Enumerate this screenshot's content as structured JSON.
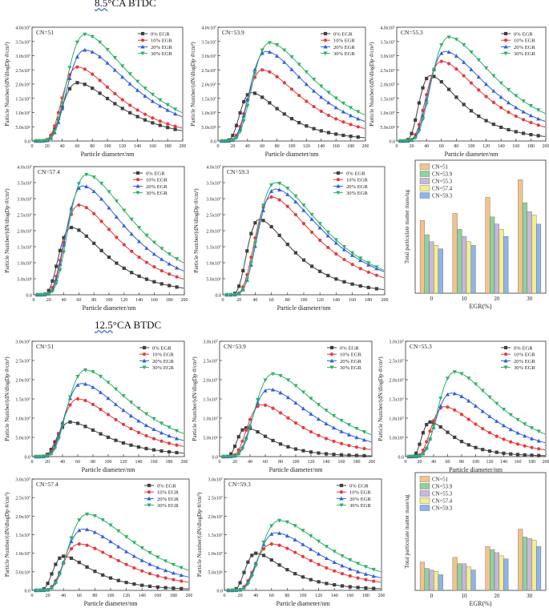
{
  "sections": [
    {
      "title_prefix": "8.5",
      "title_suffix": "°CA BTDC"
    },
    {
      "title_prefix": "12.5",
      "title_suffix": "°CA BTDC"
    }
  ],
  "legend_egr": [
    "0% EGR",
    "10% EGR",
    "20% EGR",
    "30% EGR"
  ],
  "series_colors": [
    "#404040",
    "#e8393b",
    "#2f5fe0",
    "#2fb066"
  ],
  "bar_colors": [
    "#f2c38c",
    "#8fd19e",
    "#c9b6dc",
    "#f4ee8c",
    "#8fb4ec"
  ],
  "chart_data": [
    {
      "type": "line",
      "id": "a1",
      "title": "CN=51",
      "xlabel": "Particle diameter/nm",
      "ylabel": "Particle Number/(dN/dlogDp·#/cm³)",
      "xlim": [
        0,
        200
      ],
      "ylim": [
        0,
        40000000.0
      ],
      "ytick_labels": [
        "0.0",
        "5.0x10⁶",
        "1.0x10⁷",
        "1.5x10⁷",
        "2.0x10⁷",
        "2.5x10⁷",
        "3.0x10⁷",
        "3.5x10⁷",
        "4.0x10⁷"
      ],
      "xticks": [
        0,
        20,
        40,
        60,
        80,
        100,
        120,
        140,
        160,
        180,
        200
      ],
      "series": [
        {
          "name": "0% EGR",
          "peak_x": 60,
          "peak": 20500000.0
        },
        {
          "name": "10% EGR",
          "peak_x": 60,
          "peak": 26000000.0
        },
        {
          "name": "20% EGR",
          "peak_x": 70,
          "peak": 32000000.0
        },
        {
          "name": "30% EGR",
          "peak_x": 70,
          "peak": 37500000.0
        }
      ]
    },
    {
      "type": "line",
      "id": "a2",
      "title": "CN=53.9",
      "xlabel": "Particle diameter/nm",
      "ylabel": "Particle Number/(dN/dlogDp·#/cm³)",
      "xlim": [
        0,
        200
      ],
      "ylim": [
        0,
        40000000.0
      ],
      "ytick_labels": [
        "0.0",
        "5.0x10⁶",
        "1.0x10⁷",
        "1.5x10⁷",
        "2.0x10⁷",
        "2.5x10⁷",
        "3.0x10⁷",
        "3.5x10⁷",
        "4.0x10⁷"
      ],
      "xticks": [
        0,
        20,
        40,
        60,
        80,
        100,
        120,
        140,
        160,
        180,
        200
      ],
      "series": [
        {
          "name": "0% EGR",
          "peak_x": 45,
          "peak": 17000000.0
        },
        {
          "name": "10% EGR",
          "peak_x": 60,
          "peak": 25000000.0
        },
        {
          "name": "20% EGR",
          "peak_x": 65,
          "peak": 31500000.0
        },
        {
          "name": "30% EGR",
          "peak_x": 70,
          "peak": 34500000.0
        }
      ]
    },
    {
      "type": "line",
      "id": "a3",
      "title": "CN=55.3",
      "xlabel": "Particle diameter/nm",
      "ylabel": "Particle Number/(dN/dlogDp·#/cm³)",
      "xlim": [
        0,
        200
      ],
      "ylim": [
        0,
        40000000.0
      ],
      "ytick_labels": [
        "0.0",
        "5.0x10⁶",
        "1.0x10⁷",
        "1.5x10⁷",
        "2.0x10⁷",
        "2.5x10⁷",
        "3.0x10⁷",
        "3.5x10⁷",
        "4.0x10⁷"
      ],
      "xticks": [
        0,
        20,
        40,
        60,
        80,
        100,
        120,
        140,
        160,
        180,
        200
      ],
      "series": [
        {
          "name": "0% EGR",
          "peak_x": 45,
          "peak": 23000000.0
        },
        {
          "name": "10% EGR",
          "peak_x": 60,
          "peak": 28000000.0
        },
        {
          "name": "20% EGR",
          "peak_x": 65,
          "peak": 31500000.0
        },
        {
          "name": "30% EGR",
          "peak_x": 70,
          "peak": 36500000.0
        }
      ]
    },
    {
      "type": "line",
      "id": "a4",
      "title": "CN=57.4",
      "xlabel": "Particle diameter/nm",
      "ylabel": "Particle Number/(dN/dlogDp·#/cm³)",
      "xlim": [
        0,
        200
      ],
      "ylim": [
        0,
        40000000.0
      ],
      "ytick_labels": [
        "0.0",
        "5.0x10⁶",
        "1.0x10⁷",
        "1.5x10⁷",
        "2.0x10⁷",
        "2.5x10⁷",
        "3.0x10⁷",
        "3.5x10⁷",
        "4.0x10⁷"
      ],
      "xticks": [
        0,
        20,
        40,
        60,
        80,
        100,
        120,
        140,
        160,
        180,
        200
      ],
      "series": [
        {
          "name": "0% EGR",
          "peak_x": 50,
          "peak": 21000000.0
        },
        {
          "name": "10% EGR",
          "peak_x": 60,
          "peak": 28000000.0
        },
        {
          "name": "20% EGR",
          "peak_x": 65,
          "peak": 34000000.0
        },
        {
          "name": "30% EGR",
          "peak_x": 70,
          "peak": 37500000.0
        }
      ]
    },
    {
      "type": "line",
      "id": "a5",
      "title": "CN=59.3",
      "xlabel": "Particle diameter/nm",
      "ylabel": "Particle Number/(dN/dlogDp·#/cm³)",
      "xlim": [
        0,
        200
      ],
      "ylim": [
        0,
        40000000.0
      ],
      "ytick_labels": [
        "0.0",
        "5.0x10⁶",
        "1.0x10⁷",
        "1.5x10⁷",
        "2.0x10⁷",
        "2.5x10⁷",
        "3.0x10⁷",
        "3.5x10⁷",
        "4.0x10⁷"
      ],
      "xticks": [
        0,
        20,
        40,
        60,
        80,
        100,
        120,
        140,
        160,
        180,
        200
      ],
      "series": [
        {
          "name": "0% EGR",
          "peak_x": 45,
          "peak": 23500000.0
        },
        {
          "name": "10% EGR",
          "peak_x": 60,
          "peak": 30500000.0
        },
        {
          "name": "20% EGR",
          "peak_x": 65,
          "peak": 33000000.0
        },
        {
          "name": "30% EGR",
          "peak_x": 65,
          "peak": 35000000.0
        }
      ]
    },
    {
      "type": "bar",
      "id": "a6",
      "title": "",
      "xlabel": "EGR(%)",
      "ylabel": "Total particulate matter mass/ug",
      "categories": [
        "0",
        "10",
        "20",
        "30"
      ],
      "ylim": [
        0,
        0.75
      ],
      "series": [
        {
          "name": "CN=51",
          "values": [
            0.41,
            0.45,
            0.54,
            0.64
          ]
        },
        {
          "name": "CN=53.9",
          "values": [
            0.33,
            0.36,
            0.43,
            0.51
          ]
        },
        {
          "name": "CN=55.3",
          "values": [
            0.29,
            0.32,
            0.39,
            0.46
          ]
        },
        {
          "name": "CN=57.4",
          "values": [
            0.27,
            0.29,
            0.36,
            0.44
          ]
        },
        {
          "name": "CN=59.3",
          "values": [
            0.25,
            0.27,
            0.32,
            0.39
          ]
        }
      ]
    },
    {
      "type": "line",
      "id": "b1",
      "title": "CN=51",
      "xlabel": "Particle diameter/nm",
      "ylabel": "Particle Number/(dN/dlogDp·#/cm³)",
      "xlim": [
        0,
        200
      ],
      "ylim": [
        0,
        30000000.0
      ],
      "ytick_labels": [
        "0.0",
        "5.0x10⁶",
        "1.0x10⁷",
        "1.5x10⁷",
        "2.0x10⁷",
        "2.5x10⁷",
        "3.0x10⁷"
      ],
      "xticks": [
        0,
        20,
        40,
        60,
        80,
        100,
        120,
        140,
        160,
        180,
        200
      ],
      "series": [
        {
          "name": "0% EGR",
          "peak_x": 50,
          "peak": 9000000.0
        },
        {
          "name": "10% EGR",
          "peak_x": 60,
          "peak": 15000000.0
        },
        {
          "name": "20% EGR",
          "peak_x": 65,
          "peak": 19000000.0
        },
        {
          "name": "30% EGR",
          "peak_x": 70,
          "peak": 22500000.0
        }
      ]
    },
    {
      "type": "line",
      "id": "b2",
      "title": "CN=53.9",
      "xlabel": "Particle diameter/nm",
      "ylabel": "Particle Number/(dN/dlogDp·#/cm³)",
      "xlim": [
        0,
        200
      ],
      "ylim": [
        0,
        30000000.0
      ],
      "ytick_labels": [
        "0.0",
        "5.0x10⁶",
        "1.0x10⁷",
        "1.5x10⁷",
        "2.0x10⁷",
        "2.5x10⁷",
        "3.0x10⁷"
      ],
      "xticks": [
        0,
        20,
        40,
        60,
        80,
        100,
        120,
        140,
        160,
        180,
        200
      ],
      "series": [
        {
          "name": "0% EGR",
          "peak_x": 35,
          "peak": 7500000.0
        },
        {
          "name": "10% EGR",
          "peak_x": 55,
          "peak": 13500000.0
        },
        {
          "name": "20% EGR",
          "peak_x": 65,
          "peak": 17500000.0
        },
        {
          "name": "30% EGR",
          "peak_x": 70,
          "peak": 21500000.0
        }
      ]
    },
    {
      "type": "line",
      "id": "b3",
      "title": "CN=55.3",
      "xlabel": "Particle diameter/nm",
      "ylabel": "Particle Number/(dN/dlogDp·#/cm³)",
      "xlim": [
        0,
        200
      ],
      "ylim": [
        0,
        30000000.0
      ],
      "ytick_labels": [
        "0.0",
        "5.0x10⁶",
        "1.0x10⁷",
        "1.5x10⁷",
        "2.0x10⁷",
        "2.5x10⁷",
        "3.0x10⁷"
      ],
      "xticks": [
        0,
        20,
        40,
        60,
        80,
        100,
        120,
        140,
        160,
        180,
        200
      ],
      "series": [
        {
          "name": "0% EGR",
          "peak_x": 35,
          "peak": 9000000.0
        },
        {
          "name": "10% EGR",
          "peak_x": 55,
          "peak": 13000000.0
        },
        {
          "name": "20% EGR",
          "peak_x": 65,
          "peak": 16500000.0
        },
        {
          "name": "30% EGR",
          "peak_x": 70,
          "peak": 22000000.0
        }
      ]
    },
    {
      "type": "line",
      "id": "b4",
      "title": "CN=57.4",
      "xlabel": "Particle diameter/nm",
      "ylabel": "Particle Number/(dN/dlogDp·#/cm³)",
      "xlim": [
        0,
        200
      ],
      "ylim": [
        0,
        30000000.0
      ],
      "ytick_labels": [
        "0.0",
        "5.0x10⁶",
        "1.0x10⁷",
        "1.5x10⁷",
        "2.0x10⁷",
        "2.5x10⁷",
        "3.0x10⁷"
      ],
      "xticks": [
        0,
        20,
        40,
        60,
        80,
        100,
        120,
        140,
        160,
        180,
        200
      ],
      "series": [
        {
          "name": "0% EGR",
          "peak_x": 40,
          "peak": 9200000.0
        },
        {
          "name": "10% EGR",
          "peak_x": 60,
          "peak": 12500000.0
        },
        {
          "name": "20% EGR",
          "peak_x": 65,
          "peak": 16500000.0
        },
        {
          "name": "30% EGR",
          "peak_x": 70,
          "peak": 20500000.0
        }
      ]
    },
    {
      "type": "line",
      "id": "b5",
      "title": "CN=59.3",
      "xlabel": "Particle diameter/nm",
      "ylabel": "Particle Number/(dN/dlogDp·#/cm³)",
      "xlim": [
        0,
        200
      ],
      "ylim": [
        0,
        30000000.0
      ],
      "ytick_labels": [
        "0.0",
        "5.0x10⁶",
        "1.0x10⁷",
        "1.5x10⁷",
        "2.0x10⁷",
        "2.5x10⁷",
        "3.0x10⁷"
      ],
      "xticks": [
        0,
        20,
        40,
        60,
        80,
        100,
        120,
        140,
        160,
        180,
        200
      ],
      "series": [
        {
          "name": "0% EGR",
          "peak_x": 40,
          "peak": 10000000.0
        },
        {
          "name": "10% EGR",
          "peak_x": 60,
          "peak": 12500000.0
        },
        {
          "name": "20% EGR",
          "peak_x": 65,
          "peak": 15500000.0
        },
        {
          "name": "30% EGR",
          "peak_x": 70,
          "peak": 18800000.0
        }
      ]
    },
    {
      "type": "bar",
      "id": "b6",
      "title": "",
      "xlabel": "EGR(%)",
      "ylabel": "Total particulate matter mass/ug",
      "categories": [
        "0",
        "10",
        "20",
        "30"
      ],
      "ylim": [
        0,
        0.75
      ],
      "series": [
        {
          "name": "CN=51",
          "values": [
            0.18,
            0.21,
            0.28,
            0.39
          ]
        },
        {
          "name": "CN=53.9",
          "values": [
            0.14,
            0.17,
            0.26,
            0.34
          ]
        },
        {
          "name": "CN=55.3",
          "values": [
            0.13,
            0.17,
            0.24,
            0.33
          ]
        },
        {
          "name": "CN=57.4",
          "values": [
            0.12,
            0.15,
            0.22,
            0.32
          ]
        },
        {
          "name": "CN=59.3",
          "values": [
            0.1,
            0.13,
            0.2,
            0.28
          ]
        }
      ]
    }
  ]
}
